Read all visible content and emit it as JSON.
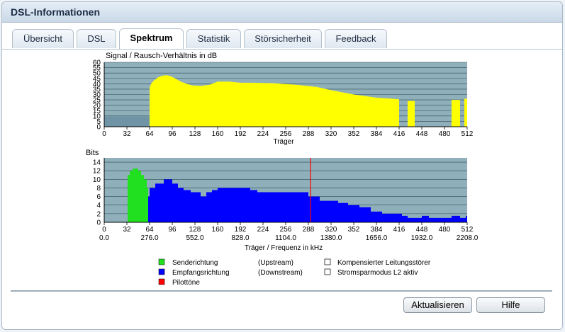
{
  "window": {
    "title": "DSL-Informationen"
  },
  "tabs": [
    {
      "label": "Übersicht",
      "active": false
    },
    {
      "label": "DSL",
      "active": false
    },
    {
      "label": "Spektrum",
      "active": true
    },
    {
      "label": "Statistik",
      "active": false
    },
    {
      "label": "Störsicherheit",
      "active": false
    },
    {
      "label": "Feedback",
      "active": false
    }
  ],
  "chart_data": [
    {
      "type": "area",
      "title": "Signal / Rausch-Verhältnis in dB",
      "xlabel": "Träger",
      "ylabel": "",
      "xlim": [
        0,
        512
      ],
      "ylim": [
        0,
        60
      ],
      "x_ticks": [
        "0",
        "32",
        "64",
        "96",
        "128",
        "160",
        "192",
        "224",
        "256",
        "288",
        "320",
        "352",
        "384",
        "416",
        "448",
        "480",
        "512"
      ],
      "y_ticks": [
        "0",
        "5",
        "10",
        "15",
        "20",
        "25",
        "30",
        "35",
        "40",
        "45",
        "50",
        "55",
        "60"
      ],
      "grid": true,
      "series": [
        {
          "color": "#ffff00",
          "points": [
            [
              64,
              0
            ],
            [
              64,
              36
            ],
            [
              66,
              40
            ],
            [
              70,
              43
            ],
            [
              76,
              46
            ],
            [
              82,
              47.5
            ],
            [
              88,
              48
            ],
            [
              94,
              47
            ],
            [
              100,
              45
            ],
            [
              108,
              42
            ],
            [
              116,
              40
            ],
            [
              124,
              38.5
            ],
            [
              136,
              38
            ],
            [
              148,
              39
            ],
            [
              156,
              41
            ],
            [
              160,
              42
            ],
            [
              176,
              42
            ],
            [
              192,
              41
            ],
            [
              208,
              41
            ],
            [
              240,
              40.5
            ],
            [
              272,
              39
            ],
            [
              300,
              37
            ],
            [
              320,
              34
            ],
            [
              352,
              30
            ],
            [
              384,
              27
            ],
            [
              408,
              26
            ],
            [
              416,
              25.5
            ]
          ]
        },
        {
          "color": "#ffff00",
          "points": [
            [
              428,
              0
            ],
            [
              428,
              24
            ],
            [
              438,
              24
            ],
            [
              438,
              0
            ]
          ]
        },
        {
          "color": "#ffff00",
          "points": [
            [
              490,
              0
            ],
            [
              490,
              25
            ],
            [
              502,
              25
            ],
            [
              502,
              0
            ]
          ]
        },
        {
          "color": "#ffff00",
          "points": [
            [
              508,
              0
            ],
            [
              508,
              26
            ],
            [
              512,
              26
            ],
            [
              512,
              0
            ]
          ]
        }
      ],
      "noise_floor": {
        "color": "#6f94a6",
        "points": [
          [
            0,
            9.5
          ],
          [
            64,
            9.5
          ]
        ]
      }
    },
    {
      "type": "bar",
      "title": "Bits",
      "xlabel": "Träger / Frequenz in kHz",
      "xlim": [
        0,
        512
      ],
      "ylim": [
        0,
        15
      ],
      "x_ticks": [
        "0",
        "32",
        "64",
        "96",
        "128",
        "160",
        "192",
        "224",
        "256",
        "288",
        "320",
        "352",
        "384",
        "416",
        "448",
        "480",
        "512"
      ],
      "x_ticks_freq": [
        "0.0",
        "276.0",
        "552.0",
        "828.0",
        "1104.0",
        "1380.0",
        "1656.0",
        "1932.0",
        "2208.0"
      ],
      "y_ticks": [
        "0",
        "2",
        "4",
        "6",
        "8",
        "10",
        "12",
        "14"
      ],
      "grid": true,
      "series": [
        {
          "name": "Senderichtung",
          "color": "#20e020",
          "steps": [
            [
              33,
              11
            ],
            [
              36,
              12
            ],
            [
              40,
              12.5
            ],
            [
              48,
              12
            ],
            [
              52,
              11
            ],
            [
              56,
              10
            ],
            [
              60,
              8
            ],
            [
              62,
              0
            ]
          ]
        },
        {
          "name": "Empfangsrichtung",
          "color": "#0000ff",
          "steps": [
            [
              62,
              6
            ],
            [
              64,
              8
            ],
            [
              72,
              9
            ],
            [
              84,
              10
            ],
            [
              96,
              9
            ],
            [
              104,
              8
            ],
            [
              112,
              7.5
            ],
            [
              122,
              7
            ],
            [
              136,
              6
            ],
            [
              144,
              7
            ],
            [
              152,
              7.5
            ],
            [
              160,
              8
            ],
            [
              206,
              7.5
            ],
            [
              216,
              7
            ],
            [
              288,
              6
            ],
            [
              304,
              5
            ],
            [
              330,
              4.5
            ],
            [
              344,
              4
            ],
            [
              360,
              3.5
            ],
            [
              376,
              2.5
            ],
            [
              392,
              2
            ],
            [
              410,
              2
            ],
            [
              420,
              1.5
            ],
            [
              428,
              1
            ],
            [
              448,
              1.5
            ],
            [
              458,
              1
            ],
            [
              490,
              1.5
            ],
            [
              502,
              1
            ],
            [
              510,
              1.5
            ],
            [
              512,
              0
            ]
          ]
        }
      ],
      "pilot_tone": {
        "x": 291,
        "color": "#ff0000"
      }
    }
  ],
  "legend": [
    {
      "label": "Senderichtung",
      "direction": "(Upstream)",
      "color": "#20e020"
    },
    {
      "label": "Empfangsrichtung",
      "direction": "(Downstream)",
      "color": "#0000ff"
    },
    {
      "label": "Pilottöne",
      "direction": "",
      "color": "#ff0000"
    },
    {
      "label": "Kompensierter Leitungsstörer",
      "color": "#ffffff"
    },
    {
      "label": "Stromsparmodus L2 aktiv",
      "color": "#ffffff"
    }
  ],
  "buttons": {
    "refresh": "Aktualisieren",
    "help": "Hilfe"
  }
}
